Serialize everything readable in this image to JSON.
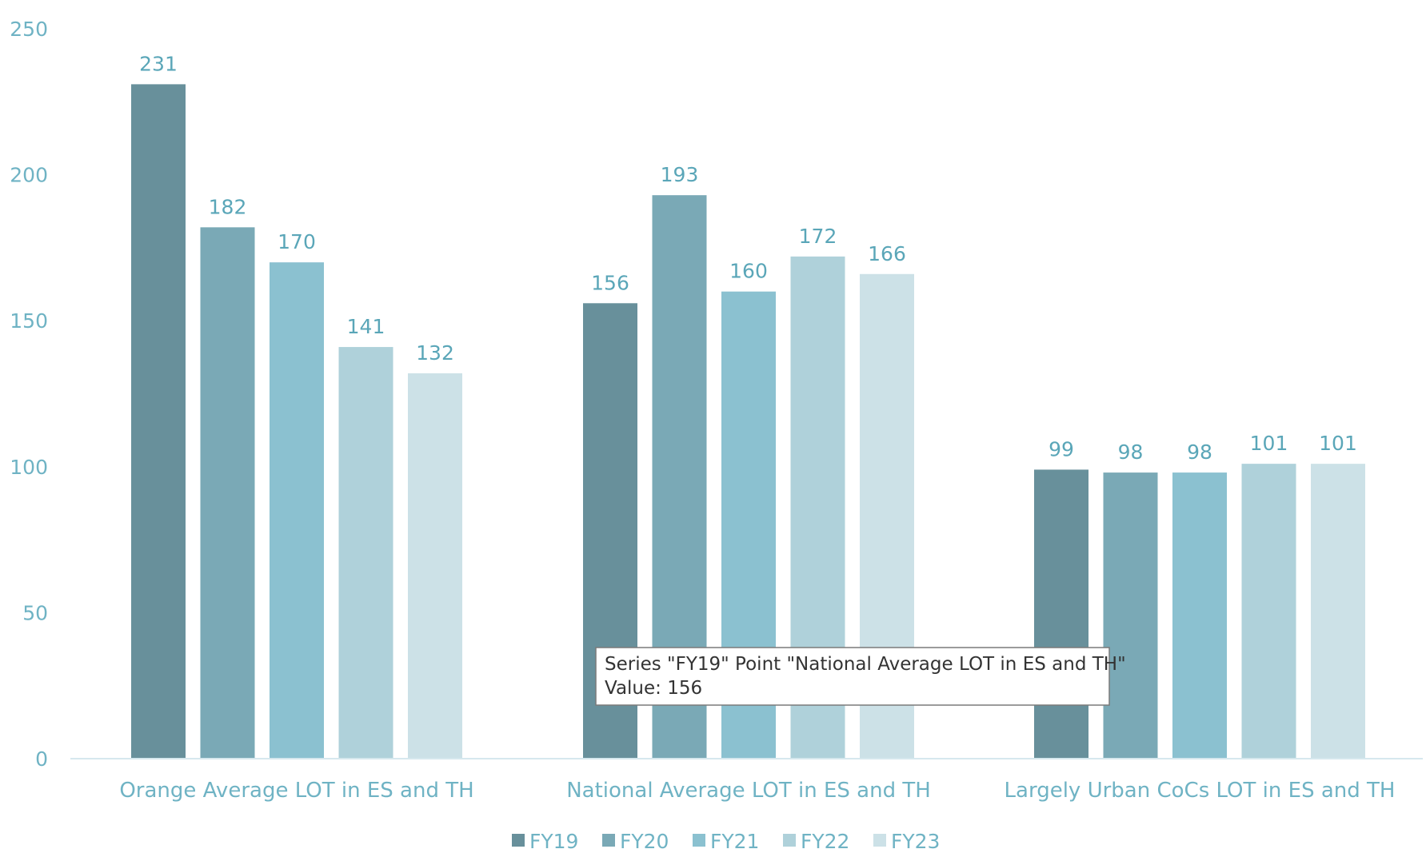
{
  "colors": {
    "FY19": "#68909b",
    "FY20": "#7aa9b6",
    "FY21": "#8bc1d0",
    "FY22": "#afd1da",
    "FY23": "#cce1e7"
  },
  "chart_data": {
    "type": "bar",
    "title": "",
    "xlabel": "",
    "ylabel": "",
    "ylim": [
      0,
      250
    ],
    "yticks": [
      0,
      50,
      100,
      150,
      200,
      250
    ],
    "grid": false,
    "legend_position": "bottom",
    "categories": [
      "Orange Average LOT in ES and TH",
      "National Average LOT in ES and TH",
      "Largely Urban CoCs LOT in ES and TH"
    ],
    "series": [
      {
        "name": "FY19",
        "values": [
          231,
          156,
          99
        ]
      },
      {
        "name": "FY20",
        "values": [
          182,
          193,
          98
        ]
      },
      {
        "name": "FY21",
        "values": [
          170,
          160,
          98
        ]
      },
      {
        "name": "FY22",
        "values": [
          141,
          172,
          101
        ]
      },
      {
        "name": "FY23",
        "values": [
          132,
          166,
          101
        ]
      }
    ]
  },
  "tooltip": {
    "line1": "Series \"FY19\" Point \"National Average LOT in ES and TH\"",
    "line2": "Value: 156"
  }
}
